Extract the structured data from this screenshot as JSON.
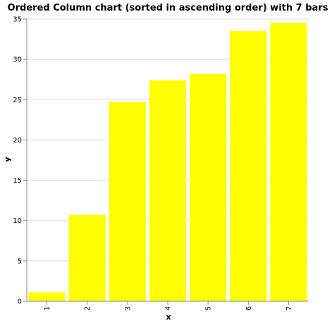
{
  "chart_data": {
    "type": "bar",
    "title": "Ordered Column chart (sorted in ascending order) with 7 bars",
    "xlabel": "x",
    "ylabel": "y",
    "categories": [
      "1",
      "2",
      "3",
      "4",
      "5",
      "6",
      "7"
    ],
    "values": [
      1.1,
      10.7,
      24.7,
      27.4,
      28.2,
      33.5,
      34.5
    ],
    "ylim": [
      0,
      35
    ],
    "yticks": [
      0,
      5,
      10,
      15,
      20,
      25,
      30,
      35
    ],
    "grid": true,
    "legend": "none",
    "colors": {
      "bar": "#ffff00",
      "grid": "#dddddd",
      "axis": "#888888"
    }
  }
}
